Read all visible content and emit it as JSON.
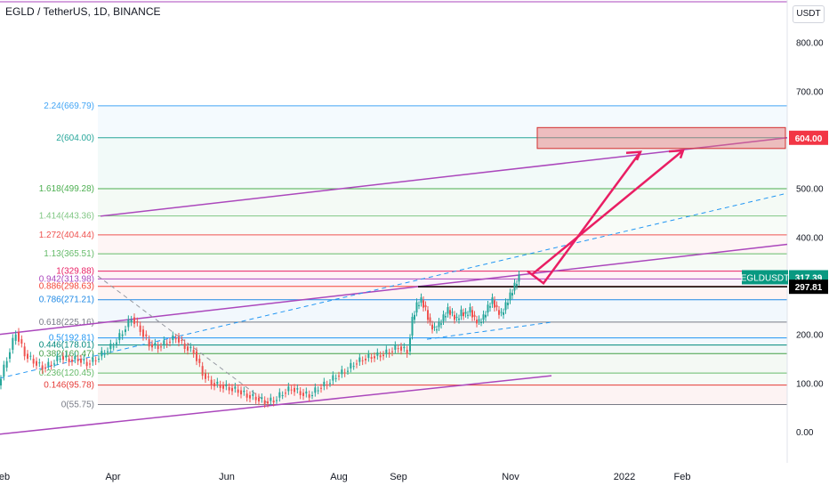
{
  "chart_data": {
    "type": "candlestick",
    "title": "EGLD / TetherUS, 1D, BINANCE",
    "currency": "USDT",
    "symbol": "EGLDUSDT",
    "ylim": [
      -40,
      860
    ],
    "y_ticks": [
      "0.00",
      "100.00",
      "200.00",
      "300.00",
      "400.00",
      "500.00",
      "600.00",
      "700.00",
      "800.00"
    ],
    "x_ticks": [
      "eb",
      "Apr",
      "Jun",
      "Aug",
      "Sep",
      "Nov",
      "2022",
      "Feb"
    ],
    "fib_levels": [
      {
        "label": "2.24(669.79)",
        "value": 669.79,
        "color": "#42a5f5"
      },
      {
        "label": "2(604.00)",
        "value": 604.0,
        "color": "#26a69a"
      },
      {
        "label": "1.618(499.28)",
        "value": 499.28,
        "color": "#4caf50"
      },
      {
        "label": "1.414(443.36)",
        "value": 443.36,
        "color": "#81c784"
      },
      {
        "label": "1.272(404.44)",
        "value": 404.44,
        "color": "#ef5350"
      },
      {
        "label": "1.13(365.51)",
        "value": 365.51,
        "color": "#66bb6a"
      },
      {
        "label": "1(329.88)",
        "value": 329.88,
        "color": "#e91e63"
      },
      {
        "label": "0.942(313.98)",
        "value": 313.98,
        "color": "#ab47bc"
      },
      {
        "label": "0.886(298.63)",
        "value": 298.63,
        "color": "#f44336"
      },
      {
        "label": "0.786(271.21)",
        "value": 271.21,
        "color": "#1e88e5"
      },
      {
        "label": "0.618(225.16)",
        "value": 225.16,
        "color": "#787b86"
      },
      {
        "label": "0.5(192.81)",
        "value": 192.81,
        "color": "#2196f3"
      },
      {
        "label": "0.446(178.01)",
        "value": 178.01,
        "color": "#00897b"
      },
      {
        "label": "0.382(160.47)",
        "value": 160.47,
        "color": "#43a047"
      },
      {
        "label": "0.236(120.45)",
        "value": 120.45,
        "color": "#66bb6a"
      },
      {
        "label": "0.146(95.78)",
        "value": 95.78,
        "color": "#e53935"
      },
      {
        "label": "0(55.75)",
        "value": 55.75,
        "color": "#787b86"
      }
    ],
    "price_labels": [
      {
        "text": "604.00",
        "value": 604.0,
        "color": "#f23645"
      },
      {
        "text": "317.39",
        "value": 317.39,
        "color": "#089981"
      },
      {
        "text": "297.81",
        "value": 297.81,
        "color": "#000000"
      }
    ],
    "last_price": 317.39,
    "last_price_symbol": "EGLDUSDT",
    "target_zone": [
      582,
      625
    ],
    "closes": [
      [
        0,
        95
      ],
      [
        10,
        150
      ],
      [
        20,
        205
      ],
      [
        30,
        160
      ],
      [
        40,
        145
      ],
      [
        50,
        132
      ],
      [
        60,
        140
      ],
      [
        70,
        155
      ],
      [
        80,
        148
      ],
      [
        90,
        150
      ],
      [
        100,
        140
      ],
      [
        110,
        150
      ],
      [
        120,
        165
      ],
      [
        130,
        180
      ],
      [
        140,
        205
      ],
      [
        150,
        235
      ],
      [
        160,
        210
      ],
      [
        170,
        180
      ],
      [
        180,
        175
      ],
      [
        190,
        185
      ],
      [
        200,
        195
      ],
      [
        210,
        175
      ],
      [
        220,
        165
      ],
      [
        230,
        120
      ],
      [
        240,
        100
      ],
      [
        250,
        95
      ],
      [
        260,
        90
      ],
      [
        270,
        85
      ],
      [
        280,
        75
      ],
      [
        290,
        70
      ],
      [
        300,
        62
      ],
      [
        310,
        65
      ],
      [
        320,
        80
      ],
      [
        330,
        90
      ],
      [
        340,
        80
      ],
      [
        350,
        75
      ],
      [
        360,
        90
      ],
      [
        370,
        100
      ],
      [
        380,
        115
      ],
      [
        390,
        125
      ],
      [
        400,
        140
      ],
      [
        410,
        150
      ],
      [
        420,
        155
      ],
      [
        430,
        158
      ],
      [
        440,
        165
      ],
      [
        450,
        175
      ],
      [
        460,
        165
      ],
      [
        465,
        230
      ],
      [
        470,
        260
      ],
      [
        475,
        270
      ],
      [
        480,
        250
      ],
      [
        485,
        220
      ],
      [
        490,
        210
      ],
      [
        495,
        220
      ],
      [
        500,
        235
      ],
      [
        505,
        250
      ],
      [
        510,
        240
      ],
      [
        515,
        230
      ],
      [
        520,
        245
      ],
      [
        525,
        240
      ],
      [
        530,
        250
      ],
      [
        535,
        230
      ],
      [
        540,
        225
      ],
      [
        545,
        235
      ],
      [
        550,
        255
      ],
      [
        555,
        270
      ],
      [
        560,
        250
      ],
      [
        565,
        240
      ],
      [
        570,
        260
      ],
      [
        575,
        280
      ],
      [
        580,
        300
      ],
      [
        585,
        317
      ]
    ],
    "channels": [
      {
        "kind": "solid",
        "color": "#ab47bc",
        "from": [
          0,
          -5
        ],
        "to": [
          620,
          115
        ]
      },
      {
        "kind": "solid",
        "color": "#ab47bc",
        "from": [
          0,
          200
        ],
        "to": [
          885,
          385
        ]
      },
      {
        "kind": "solid",
        "color": "#ab47bc",
        "from": [
          113,
          443
        ],
        "to": [
          885,
          604
        ]
      },
      {
        "kind": "dashed",
        "color": "#2196f3",
        "from": [
          0,
          110
        ],
        "to": [
          885,
          490
        ]
      },
      {
        "kind": "dashed",
        "color": "#2196f3",
        "from": [
          480,
          190
        ],
        "to": [
          620,
          225
        ]
      },
      {
        "kind": "dashed",
        "color": "#9598a1",
        "from": [
          110,
          320
        ],
        "to": [
          300,
          60
        ]
      }
    ]
  }
}
